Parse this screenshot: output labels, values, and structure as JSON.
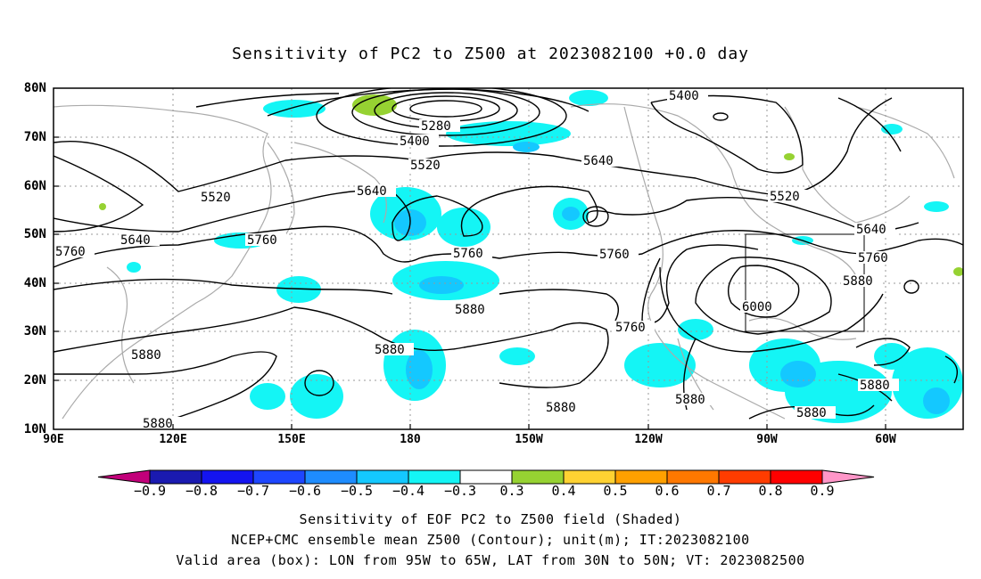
{
  "title": "Sensitivity of PC2 to Z500 at 2023082100 +0.0 day",
  "y_ticks": [
    "80N",
    "70N",
    "60N",
    "50N",
    "40N",
    "30N",
    "20N",
    "10N"
  ],
  "x_ticks": [
    "90E",
    "120E",
    "150E",
    "180",
    "150W",
    "120W",
    "90W",
    "60W"
  ],
  "contour_labels": {
    "c5280": "5280",
    "c5400a": "5400",
    "c5400b": "5400",
    "c5520a": "5520",
    "c5520b": "5520",
    "c5520c": "5520",
    "c5640a": "5640",
    "c5640b": "5640",
    "c5640c": "5640",
    "c5640d": "5640",
    "c5760a": "5760",
    "c5760b": "5760",
    "c5760c": "5760",
    "c5760d": "5760",
    "c5760e": "5760",
    "c5760f": "5760",
    "c5880a": "5880",
    "c5880b": "5880",
    "c5880c": "5880",
    "c5880d": "5880",
    "c5880e": "5880",
    "c5880f": "5880",
    "c5880g": "5880",
    "c5880h": "5880",
    "c5880i": "5880",
    "c6000": "6000"
  },
  "colorbar": {
    "colors": [
      "#c2007a",
      "#1a1ab0",
      "#1414f0",
      "#1e46ff",
      "#1e8cff",
      "#14c8ff",
      "#14f5f5",
      "#ffffff",
      "#96d232",
      "#ffd232",
      "#ffa000",
      "#ff7800",
      "#ff3c00",
      "#ff0000",
      "#ff96c8"
    ],
    "labels": [
      "−0.9",
      "−0.8",
      "−0.7",
      "−0.6",
      "−0.5",
      "−0.4",
      "−0.3",
      "0.3",
      "0.4",
      "0.5",
      "0.6",
      "0.7",
      "0.8",
      "0.9"
    ]
  },
  "caption": {
    "line1": "Sensitivity of EOF PC2 to Z500 field (Shaded)",
    "line2": "NCEP+CMC ensemble mean Z500 (Contour); unit(m); IT:2023082100",
    "line3": "Valid area (box): LON from 95W to 65W, LAT from 30N to 50N; VT: 2023082500"
  }
}
